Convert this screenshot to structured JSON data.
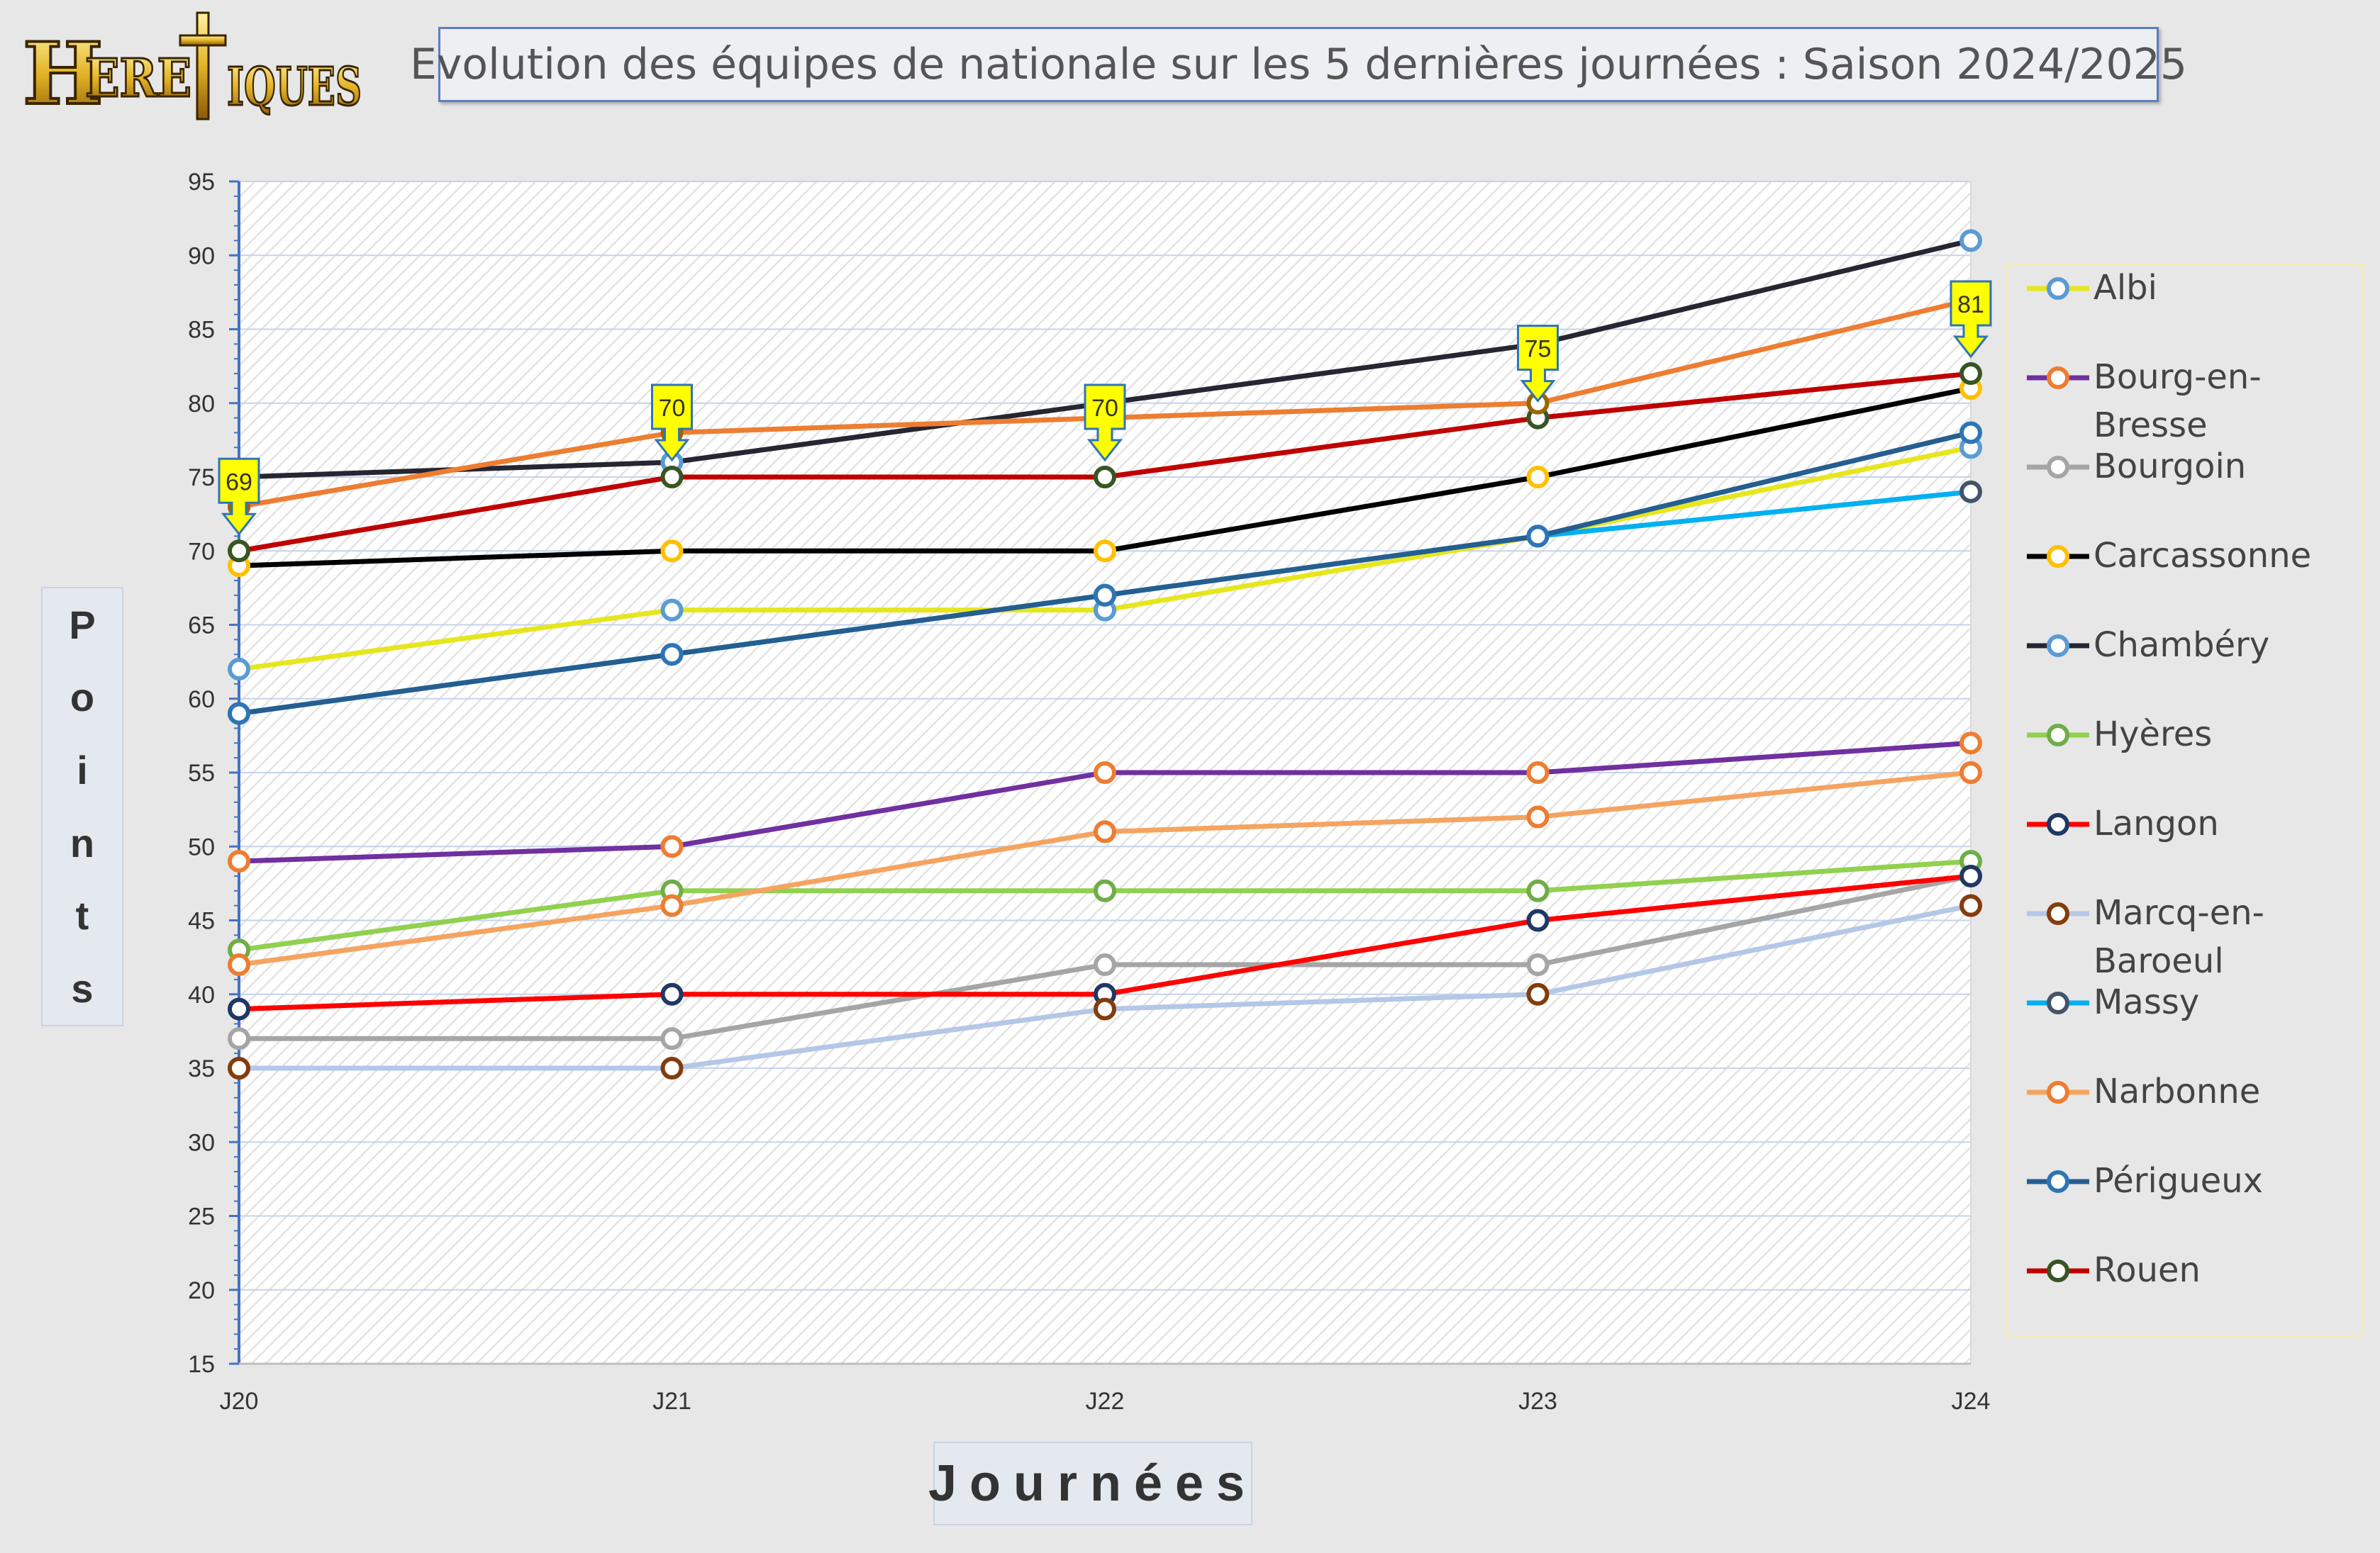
{
  "title": "Evolution des équipes de nationale sur les 5 dernières journées : Saison 2024/2025",
  "logo_text": "Heretiques",
  "y_axis_label_letters": [
    "P",
    "o",
    "i",
    "n",
    "t",
    "s"
  ],
  "x_axis_label": "Journées",
  "chart_data": {
    "type": "line",
    "categories": [
      "J20",
      "J21",
      "J22",
      "J23",
      "J24"
    ],
    "ylim": [
      15,
      95
    ],
    "ytick_step": 5,
    "grid": true,
    "legend_position": "right",
    "series": [
      {
        "name": "Albi",
        "values": [
          62,
          66,
          66,
          71,
          77
        ],
        "line": "#e6e61e",
        "marker": "#5b9bd5"
      },
      {
        "name": "Bourg-en-Bresse",
        "values": [
          49,
          50,
          55,
          55,
          57
        ],
        "line": "#7030a0",
        "marker": "#ed7d31"
      },
      {
        "name": "Bourgoin",
        "values": [
          37,
          37,
          42,
          42,
          48
        ],
        "line": "#a5a5a5",
        "marker": "#a5a5a5"
      },
      {
        "name": "Carcassonne",
        "values": [
          69,
          70,
          70,
          75,
          81
        ],
        "line": "#000000",
        "marker": "#ffc000"
      },
      {
        "name": "Chambéry",
        "values": [
          75,
          76,
          80,
          84,
          91
        ],
        "line": "#262633",
        "marker": "#5b9bd5"
      },
      {
        "name": "Hyères",
        "values": [
          43,
          47,
          47,
          47,
          49
        ],
        "line": "#92d050",
        "marker": "#70ad47"
      },
      {
        "name": "Langon",
        "values": [
          39,
          40,
          40,
          45,
          48
        ],
        "line": "#ff0000",
        "marker": "#203864"
      },
      {
        "name": "Marcq-en-Baroeul",
        "values": [
          35,
          35,
          39,
          40,
          46
        ],
        "line": "#b4c7e7",
        "marker": "#843c0c"
      },
      {
        "name": "Massy",
        "values": [
          59,
          63,
          67,
          71,
          74
        ],
        "line": "#00b0f0",
        "marker": "#44546a"
      },
      {
        "name": "Narbonne",
        "values": [
          42,
          46,
          51,
          52,
          55
        ],
        "line": "#f4a460",
        "marker": "#ed7d31"
      },
      {
        "name": "Périgueux",
        "values": [
          59,
          63,
          67,
          71,
          78
        ],
        "line": "#255e91",
        "marker": "#2e75b6"
      },
      {
        "name": "Rouen",
        "values": [
          70,
          75,
          75,
          79,
          82
        ],
        "line": "#c00000",
        "marker": "#375623"
      },
      {
        "name": "",
        "values": [
          73,
          78,
          79,
          80,
          87
        ],
        "line": "#ed7d31",
        "marker": "#9c6500"
      }
    ],
    "callouts": [
      {
        "category": "J20",
        "value": 70,
        "label": "69"
      },
      {
        "category": "J21",
        "value": 75,
        "label": "70"
      },
      {
        "category": "J22",
        "value": 75,
        "label": "70"
      },
      {
        "category": "J23",
        "value": 79,
        "label": "75"
      },
      {
        "category": "J24",
        "value": 82,
        "label": "81"
      }
    ]
  }
}
